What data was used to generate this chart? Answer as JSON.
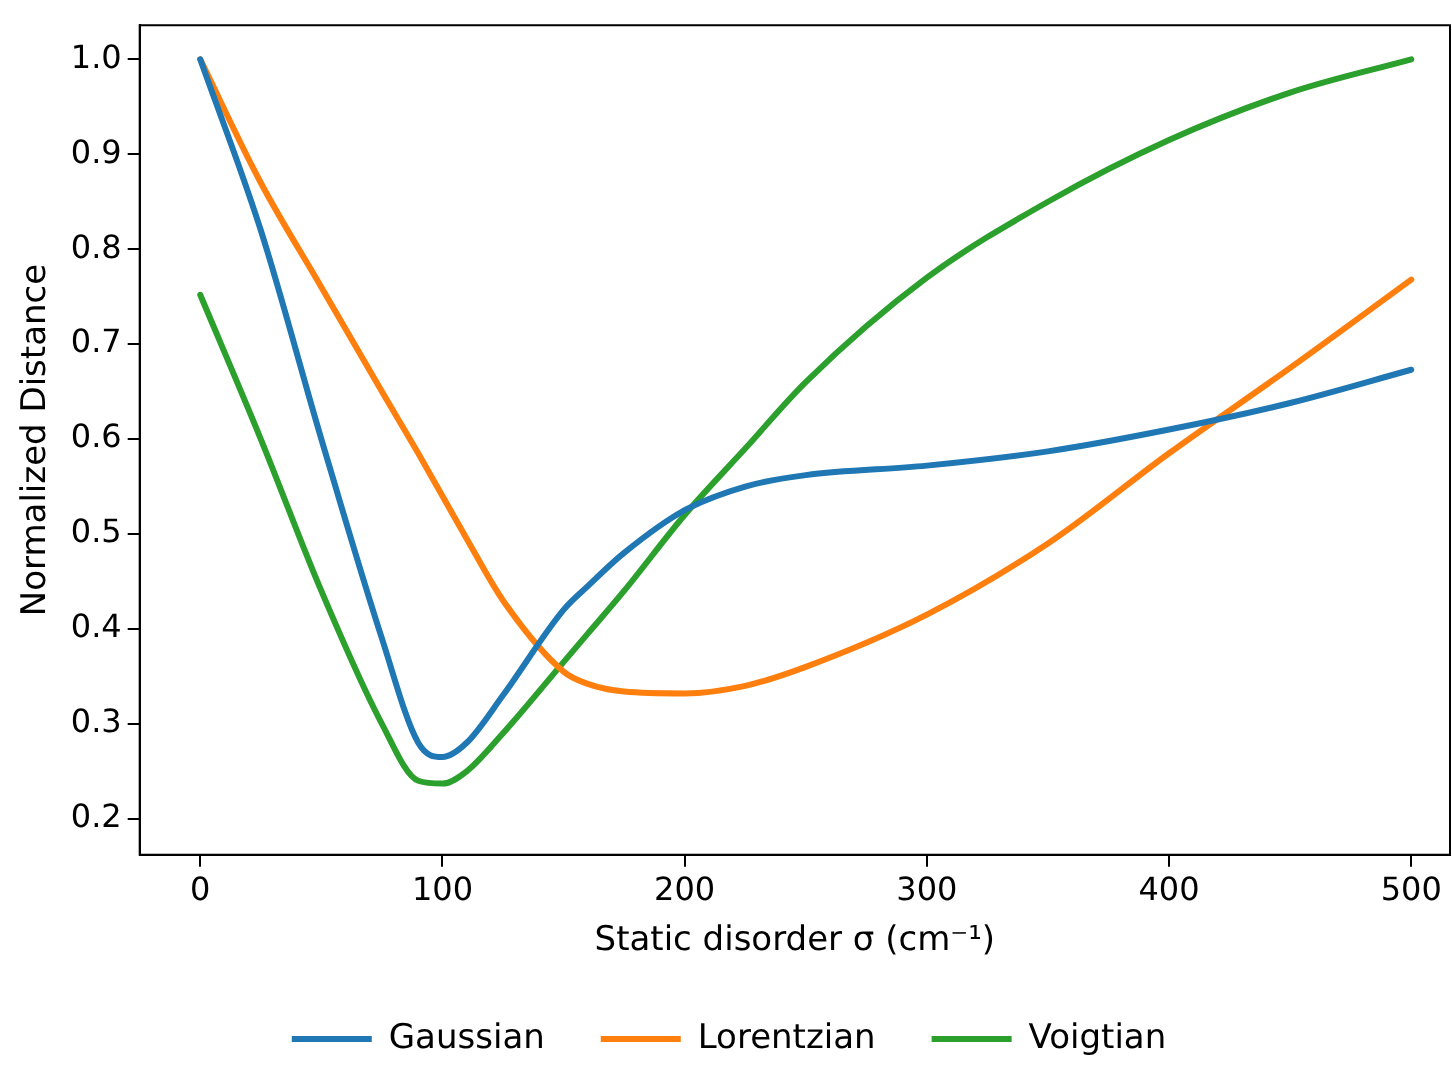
{
  "chart_data": {
    "type": "line",
    "xlabel": "Static disorder σ (cm⁻¹)",
    "ylabel": "Normalized Distance",
    "xlim": [
      -25,
      516
    ],
    "ylim": [
      0.162,
      1.036
    ],
    "xticks": [
      0,
      100,
      200,
      300,
      400,
      500
    ],
    "yticks": [
      {
        "value": 0.2,
        "label": "0.2"
      },
      {
        "value": 0.3,
        "label": "0.3"
      },
      {
        "value": 0.4,
        "label": "0.4"
      },
      {
        "value": 0.5,
        "label": "0.5"
      },
      {
        "value": 0.6,
        "label": "0.6"
      },
      {
        "value": 0.7,
        "label": "0.7"
      },
      {
        "value": 0.8,
        "label": "0.8"
      },
      {
        "value": 0.9,
        "label": "0.9"
      },
      {
        "value": 1.0,
        "label": "1.0"
      }
    ],
    "grid": false,
    "legend": "bottom",
    "marker": "none",
    "line_style": "solid",
    "x": [
      0,
      25,
      50,
      75,
      90,
      100,
      110,
      125,
      150,
      160,
      175,
      200,
      225,
      250,
      300,
      350,
      400,
      450,
      500
    ],
    "series": [
      {
        "name": "Gaussian",
        "color": "#1f77b4",
        "values": [
          1.0,
          0.82,
          0.6,
          0.39,
          0.28,
          0.265,
          0.28,
          0.33,
          0.42,
          0.445,
          0.48,
          0.525,
          0.55,
          0.562,
          0.572,
          0.587,
          0.61,
          0.638,
          0.673
        ]
      },
      {
        "name": "Lorentzian",
        "color": "#ff7f0e",
        "values": [
          1.0,
          0.87,
          0.76,
          0.65,
          0.585,
          0.54,
          0.495,
          0.43,
          0.355,
          0.342,
          0.334,
          0.332,
          0.34,
          0.36,
          0.415,
          0.49,
          0.585,
          0.675,
          0.768
        ]
      },
      {
        "name": "Voigtian",
        "color": "#2ca02c",
        "values": [
          0.752,
          0.6,
          0.44,
          0.3,
          0.24,
          0.237,
          0.25,
          0.29,
          0.365,
          0.395,
          0.44,
          0.52,
          0.59,
          0.66,
          0.77,
          0.85,
          0.915,
          0.965,
          1.0
        ]
      }
    ]
  }
}
